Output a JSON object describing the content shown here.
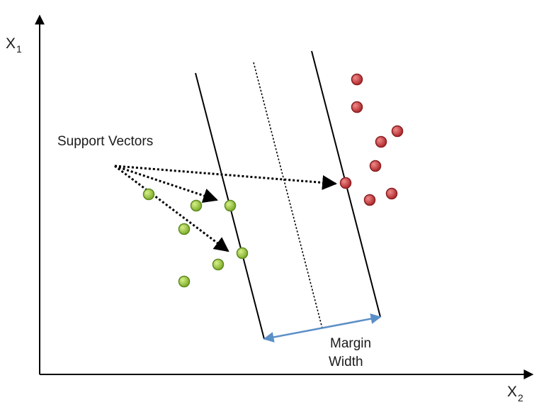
{
  "labels": {
    "y_axis": "X",
    "y_axis_sub": "1",
    "x_axis": "X",
    "x_axis_sub": "2",
    "support_vectors": "Support Vectors",
    "margin_line1": "Margin",
    "margin_line2": "Width"
  },
  "colors": {
    "class_a": "#8fbf3a",
    "class_a_stroke": "#5e8a1e",
    "class_b": "#c0393b",
    "class_b_stroke": "#8a1f22",
    "margin_arrow": "#5b8fc7",
    "lines": "#000000"
  }
}
